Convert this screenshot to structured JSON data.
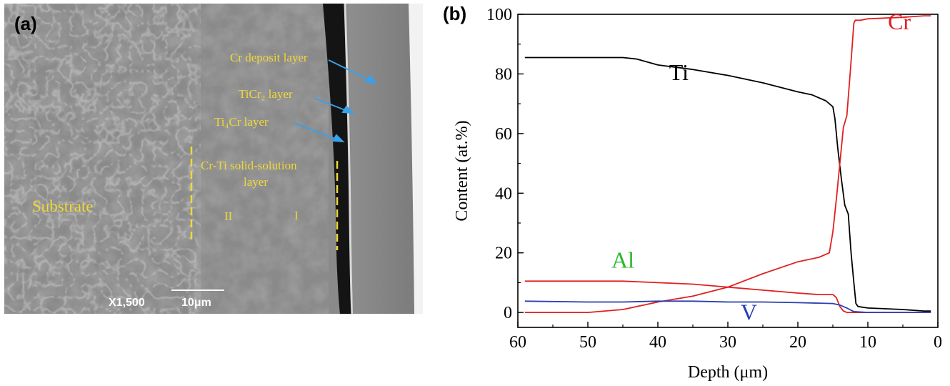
{
  "panel_a": {
    "letter": "(a)",
    "labels": {
      "cr_deposit": "Cr deposit layer",
      "ticr2": "TiCr₂ layer",
      "ti4cr": "Ti₄Cr layer",
      "solid_solution_1": "Cr-Ti solid-solution",
      "solid_solution_2": "layer",
      "substrate": "Substrate",
      "zone_2": "II",
      "zone_1": "I"
    },
    "magnification": "X1,500",
    "scale_bar": "10μm",
    "colors": {
      "label": "#f0d838",
      "arrow": "#3aa0e8",
      "scale": "#ffffff"
    }
  },
  "panel_b": {
    "letter": "(b)"
  },
  "chart_data": {
    "type": "line",
    "title": "",
    "xlabel": "Depth (μm)",
    "ylabel": "Content (at.%)",
    "xlim": [
      60,
      0
    ],
    "ylim": [
      -5,
      100
    ],
    "x_reversed": true,
    "xticks": [
      60,
      50,
      40,
      30,
      20,
      10,
      0
    ],
    "yticks": [
      0,
      20,
      40,
      60,
      80,
      100
    ],
    "grid": false,
    "legend": "none",
    "series": [
      {
        "name": "Ti",
        "color": "#000000",
        "label_at": [
          37,
          78
        ],
        "x": [
          59,
          55,
          50,
          45,
          43,
          40,
          35,
          30,
          25,
          20,
          18,
          16,
          15,
          14.7,
          14.3,
          13.8,
          13.3,
          12.8,
          12.4,
          12,
          11.7,
          11.4,
          10,
          5,
          2,
          1
        ],
        "y": [
          85.5,
          85.5,
          85.5,
          85.5,
          85,
          83,
          81.5,
          79.5,
          77,
          74,
          73,
          71,
          69,
          65,
          55,
          45,
          36,
          33,
          20,
          10,
          3,
          2,
          1.5,
          1,
          0.5,
          0.5
        ]
      },
      {
        "name": "Cr",
        "color": "#e02020",
        "label_at": [
          5.5,
          95
        ],
        "x": [
          59,
          50,
          45,
          42,
          40,
          35,
          30,
          25,
          20,
          17,
          15.5,
          15,
          14.5,
          14,
          13.5,
          13,
          12.5,
          12,
          11.8,
          11.5,
          11,
          10,
          5,
          2,
          1
        ],
        "y": [
          0,
          0,
          1,
          2.5,
          3.5,
          5.5,
          8.5,
          13,
          17,
          18.5,
          20,
          27,
          38,
          50,
          62,
          66,
          81,
          97,
          98,
          98,
          98,
          98.5,
          99,
          99.5,
          99.5
        ]
      },
      {
        "name": "Al",
        "color": "#2ab82a",
        "label_at": [
          45,
          15
        ],
        "x": [
          59,
          50,
          45,
          40,
          35,
          30,
          25,
          20,
          17,
          15,
          14.5,
          14,
          13.5,
          13,
          12,
          10,
          5,
          1
        ],
        "y": [
          10.5,
          10.5,
          10.5,
          10,
          9.5,
          8.5,
          7.5,
          6.5,
          6,
          6,
          5,
          2,
          0.5,
          0,
          0,
          0,
          0,
          0
        ]
      },
      {
        "name": "V",
        "color": "#2a40b0",
        "label_at": [
          27,
          -2.5
        ],
        "x": [
          59,
          50,
          45,
          40,
          35,
          30,
          25,
          20,
          15,
          14,
          13,
          12,
          10,
          5,
          1
        ],
        "y": [
          3.8,
          3.5,
          3.5,
          3.8,
          3.8,
          3.5,
          3.5,
          3.3,
          3,
          2.5,
          1.5,
          0.3,
          0,
          0,
          0
        ],
        "line_color": "#2a40b0"
      }
    ]
  }
}
